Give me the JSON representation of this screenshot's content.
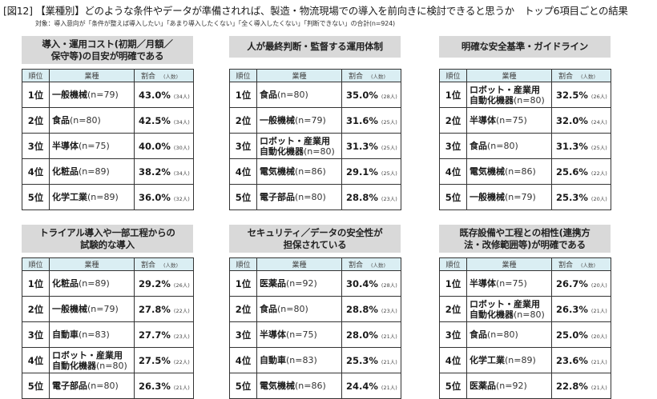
{
  "figure": {
    "title": "[図12] 【業種別】どのような条件やデータが準備されれば、製造・物流現場での導入を前向きに検討できると思うか　トップ6項目ごとの結果",
    "subtitle": "対象：導入意向が「条件が整えば導入したい」「あまり導入したくない」「全く導入したくない」「判断できない」の合計(n=924)"
  },
  "table_headers": {
    "rank": "順位",
    "industry": "業種",
    "rate": "割合",
    "people": "(人数)"
  },
  "colors": {
    "title_bg": "#d9d9d9",
    "header_bg": "#daeef3",
    "border": "#333333"
  },
  "panels": [
    {
      "title": "導入・運用コスト(初期／月額／保守等)の目安が明確である",
      "title_lines": [
        "導入・運用コスト(初期／月額／",
        "保守等)の目安が明確である"
      ],
      "rows": [
        {
          "rank": "1位",
          "industry": "一般機械",
          "n": "(n=79)",
          "rate": "43.0%",
          "people": "(34人)"
        },
        {
          "rank": "2位",
          "industry": "食品",
          "n": "(n=80)",
          "rate": "42.5%",
          "people": "(34人)"
        },
        {
          "rank": "3位",
          "industry": "半導体",
          "n": "(n=75)",
          "rate": "40.0%",
          "people": "(30人)"
        },
        {
          "rank": "4位",
          "industry": "化粧品",
          "n": "(n=89)",
          "rate": "38.2%",
          "people": "(34人)"
        },
        {
          "rank": "5位",
          "industry": "化学工業",
          "n": "(n=89)",
          "rate": "36.0%",
          "people": "(32人)"
        }
      ]
    },
    {
      "title": "人が最終判断・監督する運用体制",
      "title_lines": [
        "人が最終判断・監督する運用体制"
      ],
      "rows": [
        {
          "rank": "1位",
          "industry": "食品",
          "n": "(n=80)",
          "rate": "35.0%",
          "people": "(28人)"
        },
        {
          "rank": "2位",
          "industry": "一般機械",
          "n": "(n=79)",
          "rate": "31.6%",
          "people": "(25人)"
        },
        {
          "rank": "3位",
          "industry": "ロボット・産業用自動化機器",
          "industry_lines": [
            "ロボット・産業用",
            "自動化機器"
          ],
          "n": "(n=80)",
          "rate": "31.3%",
          "people": "(25人)"
        },
        {
          "rank": "4位",
          "industry": "電気機械",
          "n": "(n=86)",
          "rate": "29.1%",
          "people": "(25人)"
        },
        {
          "rank": "5位",
          "industry": "電子部品",
          "n": "(n=80)",
          "rate": "28.8%",
          "people": "(23人)"
        }
      ]
    },
    {
      "title": "明確な安全基準・ガイドライン",
      "title_lines": [
        "明確な安全基準・ガイドライン"
      ],
      "rows": [
        {
          "rank": "1位",
          "industry": "ロボット・産業用自動化機器",
          "industry_lines": [
            "ロボット・産業用",
            "自動化機器"
          ],
          "n": "(n=80)",
          "rate": "32.5%",
          "people": "(26人)"
        },
        {
          "rank": "2位",
          "industry": "半導体",
          "n": "(n=75)",
          "rate": "32.0%",
          "people": "(24人)"
        },
        {
          "rank": "3位",
          "industry": "食品",
          "n": "(n=80)",
          "rate": "31.3%",
          "people": "(25人)"
        },
        {
          "rank": "4位",
          "industry": "電気機械",
          "n": "(n=86)",
          "rate": "25.6%",
          "people": "(22人)"
        },
        {
          "rank": "5位",
          "industry": "一般機械",
          "n": "(n=79)",
          "rate": "25.3%",
          "people": "(20人)"
        }
      ]
    },
    {
      "title": "トライアル導入や一部工程からの試験的な導入",
      "title_lines": [
        "トライアル導入や一部工程からの",
        "試験的な導入"
      ],
      "rows": [
        {
          "rank": "1位",
          "industry": "化粧品",
          "n": "(n=89)",
          "rate": "29.2%",
          "people": "(26人)"
        },
        {
          "rank": "2位",
          "industry": "一般機械",
          "n": "(n=79)",
          "rate": "27.8%",
          "people": "(22人)"
        },
        {
          "rank": "3位",
          "industry": "自動車",
          "n": "(n=83)",
          "rate": "27.7%",
          "people": "(23人)"
        },
        {
          "rank": "4位",
          "industry": "ロボット・産業用自動化機器",
          "industry_lines": [
            "ロボット・産業用",
            "自動化機器"
          ],
          "n": "(n=80)",
          "rate": "27.5%",
          "people": "(22人)"
        },
        {
          "rank": "5位",
          "industry": "電子部品",
          "n": "(n=80)",
          "rate": "26.3%",
          "people": "(21人)"
        }
      ]
    },
    {
      "title": "セキュリティ／データの安全性が担保されている",
      "title_lines": [
        "セキュリティ／データの安全性が",
        "担保されている"
      ],
      "rows": [
        {
          "rank": "1位",
          "industry": "医薬品",
          "n": "(n=92)",
          "rate": "30.4%",
          "people": "(28人)"
        },
        {
          "rank": "2位",
          "industry": "食品",
          "n": "(n=80)",
          "rate": "28.8%",
          "people": "(23人)"
        },
        {
          "rank": "3位",
          "industry": "半導体",
          "n": "(n=75)",
          "rate": "28.0%",
          "people": "(21人)"
        },
        {
          "rank": "4位",
          "industry": "自動車",
          "n": "(n=83)",
          "rate": "25.3%",
          "people": "(21人)"
        },
        {
          "rank": "5位",
          "industry": "電気機械",
          "n": "(n=86)",
          "rate": "24.4%",
          "people": "(21人)"
        }
      ]
    },
    {
      "title": "既存設備や工程との相性(連携方法・改修範囲等)が明確である",
      "title_lines": [
        "既存設備や工程との相性(連携方",
        "法・改修範囲等)が明確である"
      ],
      "rows": [
        {
          "rank": "1位",
          "industry": "半導体",
          "n": "(n=75)",
          "rate": "26.7%",
          "people": "(20人)"
        },
        {
          "rank": "2位",
          "industry": "ロボット・産業用自動化機器",
          "industry_lines": [
            "ロボット・産業用",
            "自動化機器"
          ],
          "n": "(n=80)",
          "rate": "26.3%",
          "people": "(21人)"
        },
        {
          "rank": "3位",
          "industry": "食品",
          "n": "(n=80)",
          "rate": "25.0%",
          "people": "(20人)"
        },
        {
          "rank": "4位",
          "industry": "化学工業",
          "n": "(n=89)",
          "rate": "23.6%",
          "people": "(21人)"
        },
        {
          "rank": "5位",
          "industry": "医薬品",
          "n": "(n=92)",
          "rate": "22.8%",
          "people": "(21人)"
        }
      ]
    }
  ]
}
